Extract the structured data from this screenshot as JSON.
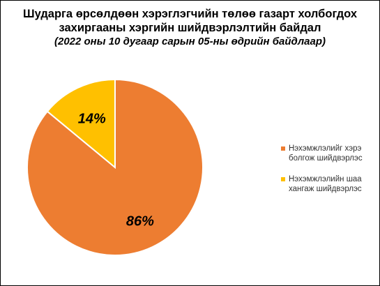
{
  "chart_data": {
    "type": "pie",
    "title_lines": [
      "Шударга өрсөлдөөн хэрэглэгчийн төлөө газарт холбогдох",
      "захиргааны хэргийн шийдвэрлэлтийн байдал"
    ],
    "subtitle": "(2022 оны 10 дугаар сарын 05-ны өдрийн байдлаар)",
    "series": [
      {
        "label_lines": [
          "Нэхэмжлэлийг хэрэ",
          "болгож шийдвэрлэс"
        ],
        "value": 86,
        "data_label": "86%",
        "color": "#ED7D31"
      },
      {
        "label_lines": [
          "Нэхэмжлэлийн шаа",
          "хангаж шийдвэрлэс"
        ],
        "value": 14,
        "data_label": "14%",
        "color": "#FFC000"
      }
    ],
    "legend_position": "right"
  }
}
